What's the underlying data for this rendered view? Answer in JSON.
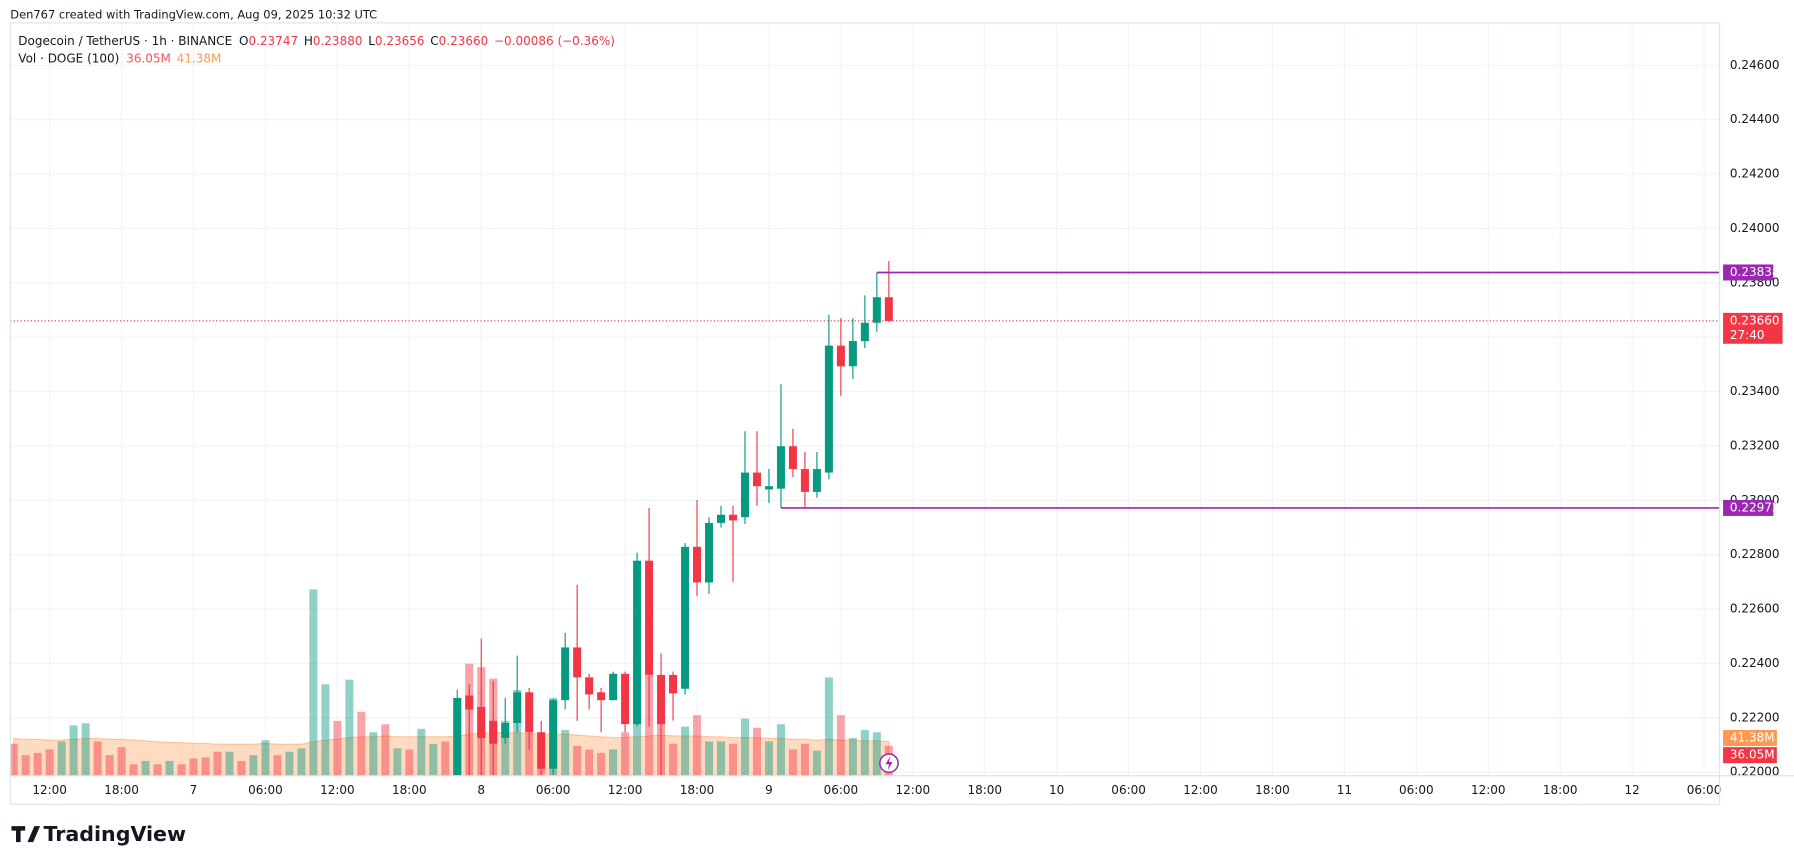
{
  "chart_data": {
    "type": "candlestick",
    "attribution": "Den767 created with TradingView.com, Aug 09, 2025 10:32 UTC",
    "legend": {
      "symbol": "Dogecoin / TetherUS · 1h · BINANCE",
      "fields": [
        {
          "key": "O",
          "value": "0.23747"
        },
        {
          "key": "H",
          "value": "0.23880"
        },
        {
          "key": "L",
          "value": "0.23656"
        },
        {
          "key": "C",
          "value": "0.23660"
        }
      ],
      "change": "−0.00086 (−0.36%)"
    },
    "volume_title": "Vol · DOGE (100)",
    "volume_last_label": "36.05M",
    "ma_last_label": "41.38M",
    "countdown": "27:40",
    "brand": "TradingView",
    "up_color": "#089981",
    "down_color": "#f23645",
    "ma_color": "#ff9850",
    "level_color": "#9c27b0",
    "x": [
      "Aug 06 09:00",
      "Aug 06 10:00",
      "Aug 06 11:00",
      "Aug 06 12:00",
      "Aug 06 13:00",
      "Aug 06 14:00",
      "Aug 06 15:00",
      "Aug 06 16:00",
      "Aug 06 17:00",
      "Aug 06 18:00",
      "Aug 06 19:00",
      "Aug 06 20:00",
      "Aug 06 21:00",
      "Aug 06 22:00",
      "Aug 06 23:00",
      "Aug 07 00:00",
      "Aug 07 01:00",
      "Aug 07 02:00",
      "Aug 07 03:00",
      "Aug 07 04:00",
      "Aug 07 05:00",
      "Aug 07 06:00",
      "Aug 07 07:00",
      "Aug 07 08:00",
      "Aug 07 09:00",
      "Aug 07 10:00",
      "Aug 07 11:00",
      "Aug 07 12:00",
      "Aug 07 13:00",
      "Aug 07 14:00",
      "Aug 07 15:00",
      "Aug 07 16:00",
      "Aug 07 17:00",
      "Aug 07 18:00",
      "Aug 07 19:00",
      "Aug 07 20:00",
      "Aug 07 21:00",
      "Aug 07 22:00",
      "Aug 07 23:00",
      "Aug 08 00:00",
      "Aug 08 01:00",
      "Aug 08 02:00",
      "Aug 08 03:00",
      "Aug 08 04:00",
      "Aug 08 05:00",
      "Aug 08 06:00",
      "Aug 08 07:00",
      "Aug 08 08:00",
      "Aug 08 09:00",
      "Aug 08 10:00",
      "Aug 08 11:00",
      "Aug 08 12:00",
      "Aug 08 13:00",
      "Aug 08 14:00",
      "Aug 08 15:00",
      "Aug 08 16:00",
      "Aug 08 17:00",
      "Aug 08 18:00",
      "Aug 08 19:00",
      "Aug 08 20:00",
      "Aug 08 21:00",
      "Aug 08 22:00",
      "Aug 08 23:00",
      "Aug 09 00:00",
      "Aug 09 01:00",
      "Aug 09 02:00",
      "Aug 09 03:00",
      "Aug 09 04:00",
      "Aug 09 05:00",
      "Aug 09 06:00",
      "Aug 09 07:00",
      "Aug 09 08:00",
      "Aug 09 09:00",
      "Aug 09 10:00"
    ],
    "open": [
      null,
      null,
      null,
      null,
      null,
      null,
      null,
      null,
      null,
      null,
      null,
      null,
      null,
      null,
      null,
      null,
      null,
      null,
      null,
      null,
      null,
      null,
      null,
      null,
      null,
      null,
      null,
      null,
      null,
      null,
      null,
      null,
      null,
      null,
      null,
      null,
      null,
      0.21985,
      0.22282,
      0.2224,
      0.22189,
      0.22126,
      0.22181,
      0.22294,
      0.22147,
      0.22013,
      0.22265,
      0.22459,
      0.22349,
      0.22294,
      0.22265,
      0.22362,
      0.22177,
      0.22778,
      0.22358,
      0.22358,
      0.22307,
      0.22829,
      0.22698,
      0.22917,
      0.22947,
      0.22938,
      0.23102,
      0.2304,
      0.23043,
      0.23199,
      0.23115,
      0.23031,
      0.23102,
      0.23569,
      0.23493,
      0.23586,
      0.23653,
      0.23747
    ],
    "high": [
      null,
      null,
      null,
      null,
      null,
      null,
      null,
      null,
      null,
      null,
      null,
      null,
      null,
      null,
      null,
      null,
      null,
      null,
      null,
      null,
      null,
      null,
      null,
      null,
      null,
      null,
      null,
      null,
      null,
      null,
      null,
      null,
      null,
      null,
      null,
      null,
      null,
      0.22303,
      0.22324,
      0.22492,
      0.22336,
      0.22273,
      0.22429,
      0.2231,
      0.22189,
      0.2227,
      0.22513,
      0.2269,
      0.22362,
      0.2231,
      0.2237,
      0.2237,
      0.22807,
      0.22972,
      0.22437,
      0.2237,
      0.22843,
      0.23001,
      0.22938,
      0.2298,
      0.2298,
      0.23254,
      0.23254,
      0.23115,
      0.23427,
      0.23263,
      0.23178,
      0.23178,
      0.23682,
      0.2367,
      0.2367,
      0.23754,
      0.23838,
      0.2388
    ],
    "low": [
      null,
      null,
      null,
      null,
      null,
      null,
      null,
      null,
      null,
      null,
      null,
      null,
      null,
      null,
      null,
      null,
      null,
      null,
      null,
      null,
      null,
      null,
      null,
      null,
      null,
      null,
      null,
      null,
      null,
      null,
      null,
      null,
      null,
      null,
      null,
      null,
      null,
      0.2195,
      0.21987,
      0.2195,
      0.2196,
      0.22105,
      0.22147,
      0.22084,
      0.21987,
      0.21987,
      0.22231,
      0.22189,
      0.22231,
      0.22147,
      0.22265,
      0.22147,
      0.22168,
      0.22168,
      0.21987,
      0.2219,
      0.22286,
      0.22648,
      0.22656,
      0.229,
      0.227,
      0.22913,
      0.2298,
      0.2299,
      0.22972,
      0.23085,
      0.22972,
      0.2301,
      0.23077,
      0.23384,
      0.23446,
      0.2356,
      0.2362,
      0.23656
    ],
    "close": [
      null,
      null,
      null,
      null,
      null,
      null,
      null,
      null,
      null,
      null,
      null,
      null,
      null,
      null,
      null,
      null,
      null,
      null,
      null,
      null,
      null,
      null,
      null,
      null,
      null,
      null,
      null,
      null,
      null,
      null,
      null,
      null,
      null,
      null,
      null,
      null,
      null,
      0.22273,
      0.22231,
      0.22126,
      0.22105,
      0.22181,
      0.22294,
      0.22147,
      0.22013,
      0.22265,
      0.22459,
      0.22349,
      0.22286,
      0.22265,
      0.22362,
      0.22177,
      0.22778,
      0.22358,
      0.22177,
      0.2229,
      0.22829,
      0.22698,
      0.22917,
      0.22947,
      0.22926,
      0.23102,
      0.23052,
      0.23052,
      0.23199,
      0.23115,
      0.23031,
      0.23115,
      0.23569,
      0.23493,
      0.23586,
      0.23653,
      0.23747,
      0.2366
    ],
    "volume": [
      38.6,
      24.8,
      27.6,
      31.7,
      41.4,
      60.7,
      63.4,
      41.4,
      24.8,
      34.5,
      13.8,
      17.9,
      13.8,
      17.9,
      13.8,
      20.7,
      22.1,
      29,
      29,
      17.9,
      24.8,
      42.8,
      24.8,
      29,
      33.1,
      224.8,
      110.3,
      66.2,
      115.9,
      77.2,
      52.4,
      62.1,
      33.1,
      31.7,
      56.6,
      38.6,
      41.4,
      93.8,
      135.2,
      131,
      117.2,
      66.2,
      103.4,
      52.4,
      38.6,
      93.8,
      55.2,
      35.9,
      31.7,
      27.6,
      31.7,
      52.4,
      107.6,
      121.4,
      100.7,
      38.6,
      59.3,
      73.1,
      41.4,
      41.4,
      38.6,
      69,
      57.9,
      41.4,
      62.1,
      31.7,
      38.6,
      30.3,
      118.6,
      73.1,
      45.5,
      55.2,
      52.4,
      36.05
    ],
    "volume_direction": [
      "down",
      "down",
      "down",
      "down",
      "up",
      "up",
      "up",
      "down",
      "down",
      "down",
      "down",
      "up",
      "down",
      "up",
      "down",
      "down",
      "down",
      "down",
      "up",
      "down",
      "up",
      "up",
      "down",
      "up",
      "up",
      "up",
      "up",
      "down",
      "up",
      "down",
      "up",
      "down",
      "up",
      "down",
      "up",
      "up",
      "down",
      "up",
      "down",
      "down",
      "down",
      "up",
      "up",
      "down",
      "down",
      "up",
      "up",
      "down",
      "down",
      "down",
      "up",
      "down",
      "up",
      "down",
      "down",
      "down",
      "up",
      "down",
      "up",
      "up",
      "down",
      "up",
      "down",
      "up",
      "up",
      "down",
      "down",
      "up",
      "up",
      "down",
      "up",
      "up",
      "up",
      "down"
    ],
    "volume_ma": [
      45,
      44,
      44,
      43,
      43,
      44,
      45,
      45,
      44,
      44,
      43,
      42,
      41,
      40,
      40,
      39,
      39,
      38,
      38,
      38,
      38,
      39,
      38,
      38,
      38,
      41,
      43,
      44,
      46,
      47,
      47,
      48,
      47,
      47,
      47,
      47,
      47,
      48,
      50,
      51,
      52,
      52,
      52,
      51,
      50,
      50,
      50,
      49,
      48,
      47,
      46,
      46,
      47,
      48,
      49,
      48,
      48,
      48,
      47,
      47,
      46,
      46,
      46,
      45,
      45,
      44,
      44,
      43,
      44,
      43,
      43,
      42,
      42,
      41.38
    ],
    "volume_ylim": [
      0,
      908
    ],
    "levels": [
      {
        "value": 0.23838,
        "start": "Aug 09 09:00"
      },
      {
        "value": 0.22972,
        "start": "Aug 09 01:00"
      }
    ],
    "xlim": [
      "Aug 06 08:43",
      "Aug 12 07:18"
    ],
    "xticks": [
      {
        "value": "Aug 06 12:00",
        "label": "12:00"
      },
      {
        "value": "Aug 06 18:00",
        "label": "18:00"
      },
      {
        "value": "Aug 07 00:00",
        "label": "7"
      },
      {
        "value": "Aug 07 06:00",
        "label": "06:00"
      },
      {
        "value": "Aug 07 12:00",
        "label": "12:00"
      },
      {
        "value": "Aug 07 18:00",
        "label": "18:00"
      },
      {
        "value": "Aug 08 00:00",
        "label": "8"
      },
      {
        "value": "Aug 08 06:00",
        "label": "06:00"
      },
      {
        "value": "Aug 08 12:00",
        "label": "12:00"
      },
      {
        "value": "Aug 08 18:00",
        "label": "18:00"
      },
      {
        "value": "Aug 09 00:00",
        "label": "9"
      },
      {
        "value": "Aug 09 06:00",
        "label": "06:00"
      },
      {
        "value": "Aug 09 12:00",
        "label": "12:00"
      },
      {
        "value": "Aug 09 18:00",
        "label": "18:00"
      },
      {
        "value": "Aug 10 00:00",
        "label": "10"
      },
      {
        "value": "Aug 10 06:00",
        "label": "06:00"
      },
      {
        "value": "Aug 10 12:00",
        "label": "12:00"
      },
      {
        "value": "Aug 10 18:00",
        "label": "18:00"
      },
      {
        "value": "Aug 11 00:00",
        "label": "11"
      },
      {
        "value": "Aug 11 06:00",
        "label": "06:00"
      },
      {
        "value": "Aug 11 12:00",
        "label": "12:00"
      },
      {
        "value": "Aug 11 18:00",
        "label": "18:00"
      },
      {
        "value": "Aug 12 00:00",
        "label": "12"
      },
      {
        "value": "Aug 12 06:00",
        "label": "06:00"
      }
    ],
    "ylim": [
      0.21987,
      0.24756
    ],
    "yticks": [
      {
        "value": 0.22,
        "label": "0.22000"
      },
      {
        "value": 0.222,
        "label": "0.22200"
      },
      {
        "value": 0.224,
        "label": "0.22400"
      },
      {
        "value": 0.226,
        "label": "0.22600"
      },
      {
        "value": 0.228,
        "label": "0.22800"
      },
      {
        "value": 0.23,
        "label": "0.23000"
      },
      {
        "value": 0.232,
        "label": "0.23200"
      },
      {
        "value": 0.234,
        "label": "0.23400"
      },
      {
        "value": 0.236,
        "label": "0.23600"
      },
      {
        "value": 0.238,
        "label": "0.23800"
      },
      {
        "value": 0.24,
        "label": "0.24000"
      },
      {
        "value": 0.242,
        "label": "0.24200"
      },
      {
        "value": 0.244,
        "label": "0.24400"
      },
      {
        "value": 0.246,
        "label": "0.24600"
      }
    ],
    "grid": true
  }
}
